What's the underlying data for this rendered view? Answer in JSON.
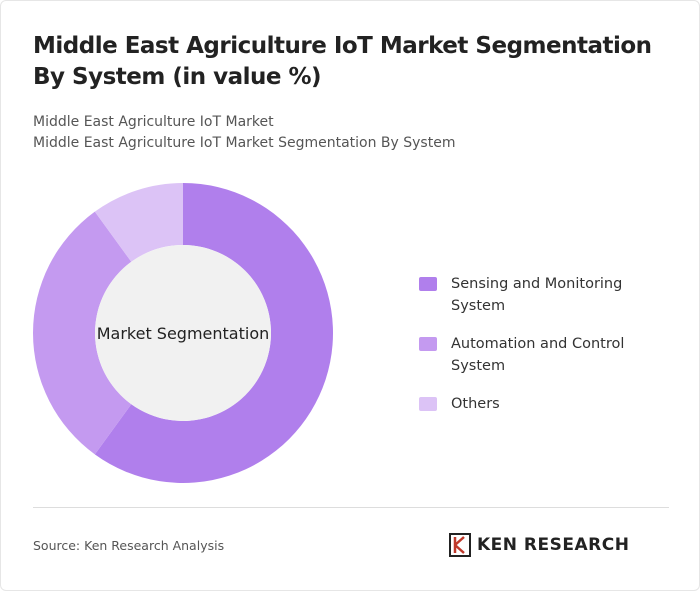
{
  "chart_data": {
    "type": "donut",
    "title": "Middle East Agriculture IoT Market Segmentation By System (in value %)",
    "subtitle": [
      "Middle East Agriculture IoT Market",
      "Middle East Agriculture IoT Market Segmentation By System"
    ],
    "center_label": "Market Segmentation",
    "categories": [
      "Sensing and Monitoring System",
      "Automation and Control System",
      "Others"
    ],
    "values": [
      60,
      30,
      10
    ],
    "colors": [
      "#b07fec",
      "#c49af0",
      "#dcc3f6"
    ],
    "source": "Source: Ken Research Analysis"
  },
  "logo": "KEN RESEARCH"
}
